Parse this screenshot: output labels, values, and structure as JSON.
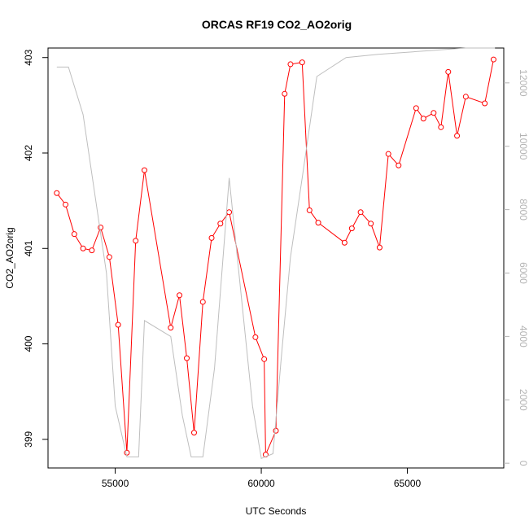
{
  "chart_data": {
    "type": "line",
    "title": "ORCAS RF19 CO2_AO2orig",
    "xlabel": "UTC Seconds",
    "ylabel": "CO2_AO2orig",
    "xlim": [
      52700,
      68300
    ],
    "ylim": [
      398.7,
      403.1
    ],
    "y2lim": [
      -150,
      13100
    ],
    "x_ticks": [
      55000,
      60000,
      65000
    ],
    "y_ticks": [
      399,
      400,
      401,
      402,
      403
    ],
    "y2_ticks": [
      0,
      2000,
      4000,
      6000,
      8000,
      10000,
      12000
    ],
    "grid": false,
    "series": [
      {
        "axis": "left",
        "color": "#ff0000",
        "marker": "open-circle",
        "x": [
          53000,
          53300,
          53600,
          53900,
          54200,
          54500,
          54800,
          55100,
          55400,
          55700,
          56000,
          56900,
          57200,
          57450,
          57700,
          58000,
          58300,
          58600,
          58900,
          59800,
          60100,
          60150,
          60500,
          60800,
          61000,
          61400,
          61650,
          61950,
          62850,
          63100,
          63400,
          63750,
          64050,
          64350,
          64700,
          65300,
          65550,
          65900,
          66150,
          66400,
          66700,
          67000,
          67650,
          67950
        ],
        "y": [
          401.58,
          401.46,
          401.15,
          401.0,
          400.98,
          401.22,
          400.91,
          400.2,
          398.86,
          401.08,
          401.82,
          400.17,
          400.51,
          399.85,
          399.07,
          400.44,
          401.11,
          401.26,
          401.38,
          400.07,
          399.84,
          398.84,
          399.09,
          402.62,
          402.93,
          402.95,
          401.4,
          401.27,
          401.06,
          401.21,
          401.38,
          401.26,
          401.01,
          401.99,
          401.87,
          402.47,
          402.36,
          402.42,
          402.27,
          402.85,
          402.18,
          402.59,
          402.52,
          402.98
        ]
      },
      {
        "axis": "right",
        "color": "#bebebe",
        "marker": "none",
        "x": [
          53000,
          53400,
          53900,
          54700,
          55000,
          55400,
          55800,
          56000,
          56900,
          57300,
          57600,
          58000,
          58400,
          58900,
          59700,
          60000,
          60400,
          60700,
          61000,
          61400,
          61900,
          62900,
          64000,
          65500,
          67000,
          68000
        ],
        "y": [
          12500,
          12500,
          11000,
          6000,
          1800,
          200,
          200,
          4500,
          4000,
          1500,
          200,
          200,
          3000,
          9000,
          1800,
          150,
          300,
          3500,
          6500,
          9000,
          12200,
          12800,
          12900,
          13000,
          13100,
          13100
        ]
      }
    ]
  }
}
